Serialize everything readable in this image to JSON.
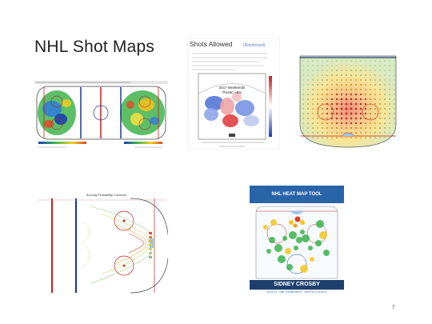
{
  "slide": {
    "title": "NHL Shot Maps",
    "page_number": "7"
  },
  "figures": {
    "shots_allowed": {
      "title": "Shots Allowed",
      "badge": "(Reinforced)",
      "note_line1": "2017 Weekends",
      "note_line2": "Threat: +5%"
    },
    "scoring_chances": {
      "title": "Scoring Probability Contours"
    },
    "heat_map_tool": {
      "header": "NHL HEAT MAP TOOL",
      "player_name": "SIDNEY CROSBY",
      "caption": "2013-14 · NHL STANDINGS · SHOTS & GOALS"
    }
  },
  "colors": {
    "ice_blue": "#1e3a8a",
    "ice_red": "#c81e1e",
    "heat_hot": "#e23b1f",
    "heat_warm": "#f2c521",
    "heat_cool": "#38b24a",
    "banner_blue": "#2a64a8"
  }
}
